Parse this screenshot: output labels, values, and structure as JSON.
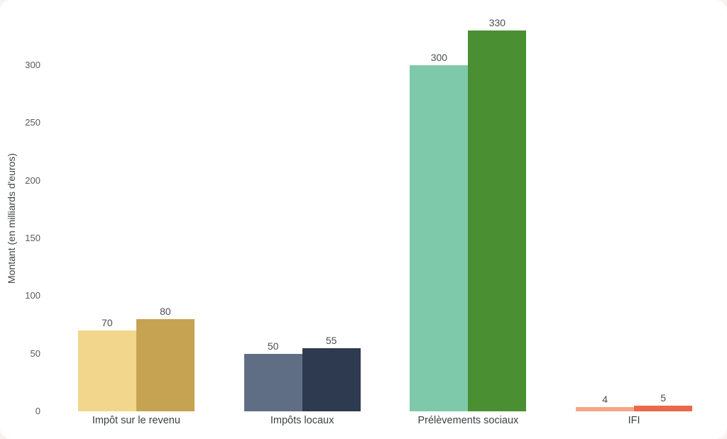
{
  "page": {
    "background_color": "#f8f3ef",
    "card_color": "#ffffff"
  },
  "chart_data": {
    "type": "bar",
    "title": "",
    "xlabel": "",
    "ylabel": "Montant (en milliards d'euros)",
    "categories": [
      "Impôt sur le revenu",
      "Impôts locaux",
      "Prélèvements sociaux",
      "IFI"
    ],
    "series": [
      {
        "values": [
          70,
          50,
          300,
          4
        ]
      },
      {
        "values": [
          80,
          55,
          330,
          5
        ]
      }
    ],
    "bar_colors": [
      [
        "#f2d68c",
        "#c6a352"
      ],
      [
        "#5f6e84",
        "#2d3a50"
      ],
      [
        "#7fc9ab",
        "#4a9033"
      ],
      [
        "#f2a686",
        "#eb684a"
      ]
    ],
    "value_labels": true,
    "yticks": [
      0,
      50,
      100,
      150,
      200,
      250,
      300
    ],
    "ylim": [
      0,
      356
    ],
    "grid": false,
    "legend_position": "none",
    "tick_color": "#55595e",
    "label_color": "#3b3f44"
  }
}
